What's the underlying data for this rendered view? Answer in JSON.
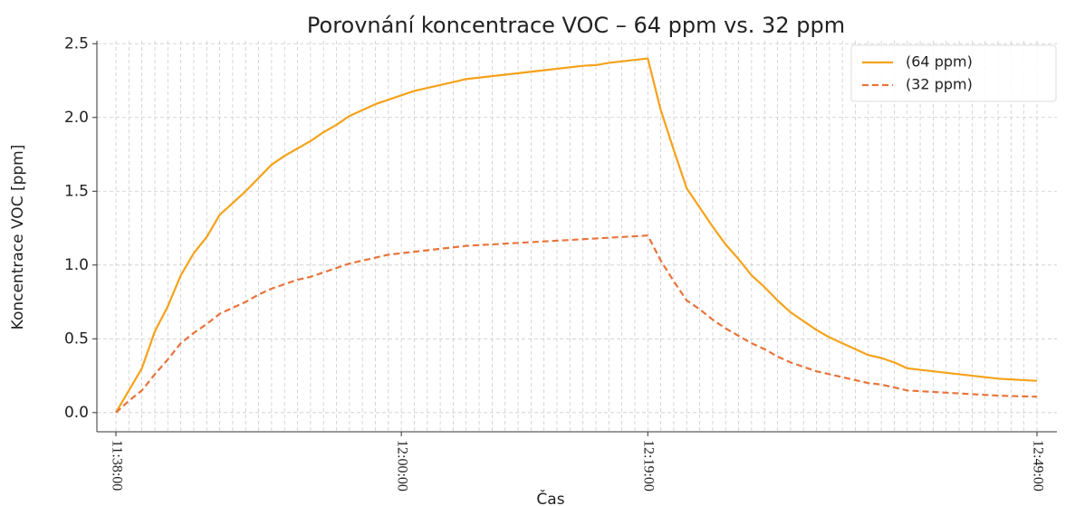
{
  "chart_data": {
    "type": "line",
    "title": "Porovnání koncentrace VOC – 64 ppm vs. 32 ppm",
    "x_label": "Čas",
    "y_label": "Koncentrace VOC [ppm]",
    "categories": [
      "11:38:00",
      null,
      null,
      null,
      null,
      null,
      null,
      null,
      null,
      null,
      null,
      null,
      null,
      null,
      null,
      null,
      null,
      null,
      null,
      null,
      null,
      null,
      "12:00:00",
      null,
      null,
      null,
      null,
      null,
      null,
      null,
      null,
      null,
      null,
      null,
      null,
      null,
      null,
      null,
      null,
      null,
      null,
      "12:19:00",
      null,
      null,
      null,
      null,
      null,
      null,
      null,
      null,
      null,
      null,
      null,
      null,
      null,
      null,
      null,
      null,
      null,
      null,
      null,
      null,
      null,
      null,
      null,
      null,
      null,
      null,
      null,
      null,
      null,
      "12:49:00"
    ],
    "series": [
      {
        "name": "(64 ppm)",
        "color": "#f5a21b",
        "dash": false,
        "values": [
          0,
          0.15,
          0.3,
          0.55,
          0.72,
          0.93,
          1.08,
          1.19,
          1.34,
          1.42,
          1.5,
          1.59,
          1.68,
          1.74,
          1.79,
          1.84,
          1.9,
          1.95,
          2.01,
          2.05,
          2.09,
          2.12,
          2.15,
          2.18,
          2.2,
          2.22,
          2.24,
          2.26,
          2.27,
          2.28,
          2.29,
          2.3,
          2.31,
          2.32,
          2.33,
          2.34,
          2.35,
          2.355,
          2.37,
          2.38,
          2.39,
          2.4,
          2.05,
          1.78,
          1.52,
          1.39,
          1.26,
          1.14,
          1.04,
          0.93,
          0.85,
          0.76,
          0.68,
          0.62,
          0.56,
          0.51,
          0.47,
          0.43,
          0.39,
          0.37,
          0.34,
          0.3,
          0.29,
          0.28,
          0.27,
          0.26,
          0.25,
          0.24,
          0.23,
          0.225,
          0.22,
          0.215
        ]
      },
      {
        "name": "(32 ppm)",
        "color": "#e8743b",
        "dash": true,
        "values": [
          0,
          0.08,
          0.15,
          0.26,
          0.36,
          0.47,
          0.54,
          0.6,
          0.67,
          0.71,
          0.75,
          0.8,
          0.84,
          0.87,
          0.9,
          0.92,
          0.95,
          0.98,
          1.01,
          1.03,
          1.05,
          1.07,
          1.08,
          1.09,
          1.1,
          1.11,
          1.12,
          1.13,
          1.135,
          1.14,
          1.145,
          1.15,
          1.155,
          1.16,
          1.165,
          1.17,
          1.175,
          1.18,
          1.185,
          1.19,
          1.195,
          1.2,
          1.03,
          0.89,
          0.76,
          0.7,
          0.63,
          0.57,
          0.52,
          0.47,
          0.43,
          0.38,
          0.34,
          0.31,
          0.28,
          0.26,
          0.24,
          0.22,
          0.2,
          0.19,
          0.17,
          0.15,
          0.145,
          0.14,
          0.135,
          0.13,
          0.125,
          0.12,
          0.115,
          0.112,
          0.11,
          0.108
        ]
      }
    ],
    "ylim": [
      -0.13,
      2.52
    ],
    "yticks": [
      {
        "value": 0,
        "label": "0.0"
      },
      0.5,
      {
        "value": 1,
        "label": "1.0"
      },
      1.5,
      {
        "value": 2,
        "label": "2.0"
      },
      2.5
    ],
    "grid": true,
    "legend": "upper right"
  }
}
